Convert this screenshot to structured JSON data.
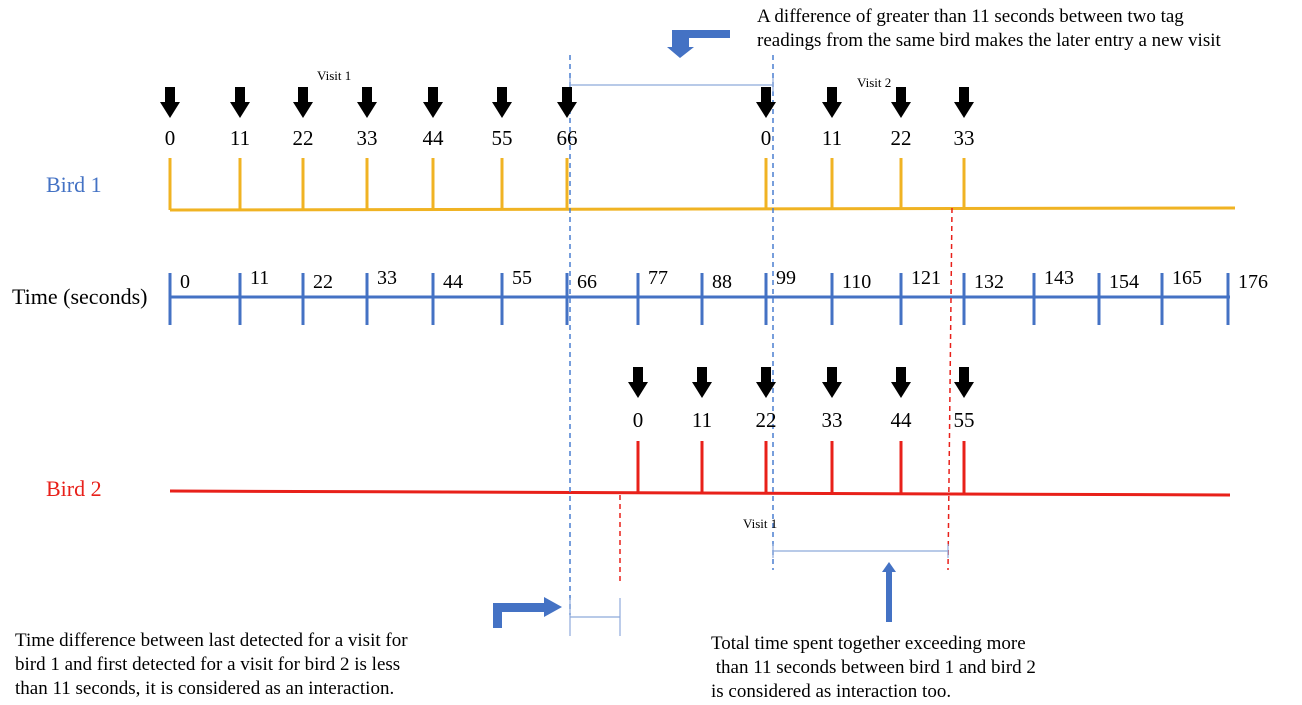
{
  "colors": {
    "bird1": "#f0b323",
    "bird2": "#e8201a",
    "axis": "#4472c4",
    "label_blue": "#4472c4",
    "label_red": "#e8201a",
    "guide_blue": "#4a7fd0",
    "guide_red": "#e8201a",
    "arrow_black": "#000000",
    "arrow_callout": "#4472c4"
  },
  "icons": {
    "detection": "down-arrow-icon",
    "callout_top": "bent-arrow-down-left-icon",
    "callout_bottom_left": "bent-arrow-right-icon",
    "callout_bottom_right": "up-arrow-icon"
  },
  "axis": {
    "label": "Time (seconds)",
    "ticks": [
      "0",
      "11",
      "22",
      "33",
      "44",
      "55",
      "66",
      "77",
      "88",
      "99",
      "110",
      "121",
      "132",
      "143",
      "154",
      "165",
      "176"
    ]
  },
  "bird1": {
    "label": "Bird 1",
    "visits": [
      {
        "label": "Visit 1",
        "readings": [
          "0",
          "11",
          "22",
          "33",
          "44",
          "55",
          "66"
        ],
        "times": [
          0,
          11,
          22,
          33,
          44,
          55,
          66
        ]
      },
      {
        "label": "Visit 2",
        "readings": [
          "0",
          "11",
          "22",
          "33"
        ],
        "times": [
          99,
          110,
          121,
          132
        ]
      }
    ]
  },
  "bird2": {
    "label": "Bird 2",
    "visits": [
      {
        "label": "Visit 1",
        "readings": [
          "0",
          "11",
          "22",
          "33",
          "44",
          "55"
        ],
        "times": [
          77,
          88,
          99,
          110,
          121,
          132
        ]
      }
    ]
  },
  "annotations": {
    "top": [
      "A difference of greater than 11 seconds between two tag",
      "readings from the same bird makes the later entry a new visit"
    ],
    "bottom_left": [
      "Time difference between last detected for a visit for",
      "bird 1 and first detected for a visit for bird 2 is less",
      "than 11 seconds, it is considered as an interaction."
    ],
    "bottom_right": [
      "Total time spent together exceeding more",
      " than 11 seconds between bird 1 and bird 2",
      "is considered as interaction too."
    ]
  }
}
